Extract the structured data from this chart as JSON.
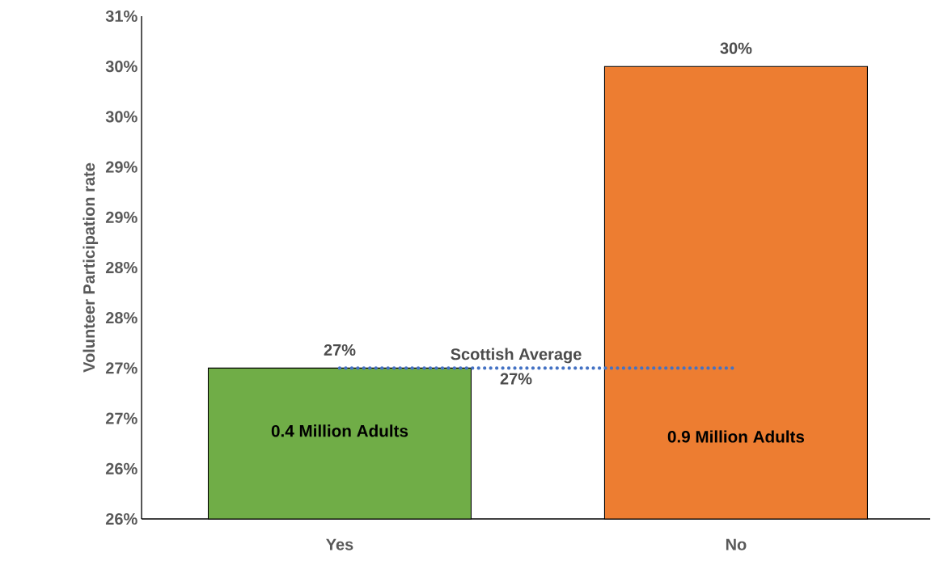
{
  "chart_data": {
    "type": "bar",
    "ylabel": "Volunteer Participation rate",
    "categories": [
      "Yes",
      "No"
    ],
    "values": [
      27,
      30
    ],
    "colors": [
      "#70ad47",
      "#ed7d31"
    ],
    "value_labels": [
      "27%",
      "30%"
    ],
    "ylim": [
      25.5,
      30.5
    ],
    "yticks": [
      {
        "value": 25.5,
        "label": "26%"
      },
      {
        "value": 26,
        "label": "26%"
      },
      {
        "value": 26.5,
        "label": "27%"
      },
      {
        "value": 27,
        "label": "27%"
      },
      {
        "value": 27.5,
        "label": "28%"
      },
      {
        "value": 28,
        "label": "28%"
      },
      {
        "value": 28.5,
        "label": "29%"
      },
      {
        "value": 29,
        "label": "29%"
      },
      {
        "value": 29.5,
        "label": "30%"
      },
      {
        "value": 30,
        "label": "30%"
      },
      {
        "value": 30.5,
        "label": "31%"
      }
    ],
    "ref_lines": [
      {
        "axis": "y",
        "value": 27,
        "label": "Scottish Average",
        "color": "#4472c4",
        "line_style": "dotted"
      }
    ],
    "annotations": [
      "0.4 Million Adults",
      "0.9 Million Adults",
      "27%"
    ],
    "grid": false
  }
}
